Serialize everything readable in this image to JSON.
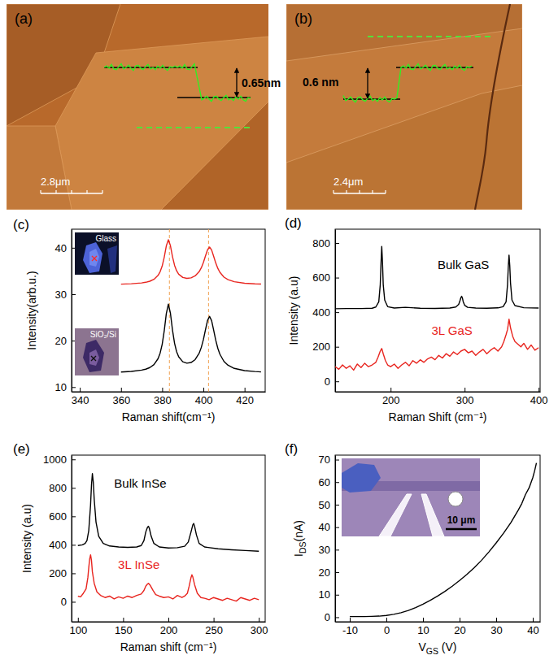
{
  "images": [
    {
      "panel_label": "(a)",
      "step_height": "0.65nm",
      "scale_bar": "2.8μm"
    },
    {
      "panel_label": "(b)",
      "step_height": "0.6 nm",
      "scale_bar": "2.4μm"
    }
  ],
  "chart_data": [
    {
      "type": "line",
      "panel_label": "(c)",
      "x_label": "Raman shift(cm⁻¹)",
      "y_label": "Intensity(arb.u.)",
      "xlim": [
        336,
        430
      ],
      "xticks": [
        340,
        360,
        380,
        400,
        420
      ],
      "ylim": [
        9,
        44
      ],
      "yticks": [
        10,
        20,
        30,
        40
      ],
      "reference_lines": [
        383.5,
        402.5
      ],
      "x": [
        360,
        365,
        370,
        372,
        374,
        376,
        378,
        379,
        380,
        381,
        382,
        383,
        384,
        385,
        386,
        387,
        388,
        390,
        392,
        394,
        396,
        398,
        399,
        400,
        401,
        402,
        403,
        404,
        405,
        406,
        407,
        408,
        410,
        412,
        415,
        420,
        425,
        428
      ],
      "series": [
        {
          "name": "Glass",
          "color": "#e8251f",
          "values": [
            32.16,
            32.25,
            32.43,
            32.57,
            32.8,
            33.21,
            34.05,
            34.84,
            36.07,
            37.99,
            40.41,
            41.74,
            40.45,
            38.08,
            36.22,
            35.04,
            34.31,
            33.61,
            33.42,
            33.52,
            33.94,
            34.89,
            35.7,
            36.81,
            38.21,
            39.55,
            40.15,
            39.52,
            38.15,
            36.72,
            35.57,
            34.72,
            33.68,
            33.12,
            32.69,
            32.37,
            32.23,
            32.18
          ]
        },
        {
          "name": "SiO₂/Si",
          "color": "#000000",
          "values": [
            13.25,
            13.37,
            13.65,
            13.86,
            14.21,
            14.84,
            16.13,
            17.32,
            19.22,
            22.15,
            25.82,
            27.86,
            25.89,
            22.29,
            19.44,
            17.62,
            16.52,
            15.45,
            15.14,
            15.29,
            15.92,
            17.34,
            18.56,
            20.22,
            22.32,
            24.34,
            25.22,
            24.29,
            22.24,
            20.08,
            18.36,
            17.09,
            15.52,
            14.69,
            14.03,
            13.56,
            13.35,
            13.27
          ]
        }
      ]
    },
    {
      "type": "line",
      "panel_label": "(d)",
      "x_label": "Raman Shift (cm⁻¹)",
      "y_label": "Intensity (a.u)",
      "xlim": [
        125,
        402
      ],
      "xticks": [
        200,
        300,
        400
      ],
      "ylim": [
        -60,
        880
      ],
      "yticks": [
        0,
        200,
        400,
        600,
        800
      ],
      "series": [
        {
          "name": "Bulk GaS",
          "color": "#000000",
          "x": [
            125,
            140,
            160,
            175,
            180,
            184,
            186,
            187,
            188,
            189,
            190,
            192,
            196,
            205,
            220,
            240,
            260,
            280,
            288,
            292,
            294,
            295,
            296,
            297,
            298,
            300,
            304,
            315,
            330,
            345,
            352,
            356,
            358,
            359,
            360,
            361,
            362,
            364,
            368,
            380,
            400
          ],
          "values": [
            420,
            421,
            421,
            423,
            430,
            460,
            560,
            680,
            780,
            690,
            560,
            470,
            432,
            424,
            428,
            423,
            422,
            424,
            430,
            445,
            470,
            485,
            492,
            482,
            462,
            440,
            428,
            424,
            423,
            425,
            432,
            460,
            560,
            660,
            730,
            670,
            570,
            470,
            438,
            426,
            424
          ]
        },
        {
          "name": "3L GaS",
          "color": "#e8251f",
          "x": [
            125,
            130,
            135,
            140,
            145,
            150,
            155,
            160,
            165,
            170,
            175,
            180,
            183,
            186,
            188,
            190,
            193,
            196,
            200,
            205,
            210,
            215,
            220,
            225,
            230,
            235,
            240,
            245,
            250,
            255,
            260,
            265,
            270,
            275,
            280,
            285,
            290,
            295,
            300,
            305,
            310,
            315,
            320,
            325,
            330,
            335,
            340,
            345,
            350,
            353,
            356,
            358,
            360,
            362,
            365,
            368,
            372,
            376,
            380,
            385,
            390,
            395,
            400
          ],
          "values": [
            85,
            70,
            95,
            75,
            90,
            65,
            100,
            80,
            105,
            85,
            95,
            110,
            140,
            175,
            190,
            160,
            120,
            95,
            85,
            100,
            75,
            95,
            110,
            90,
            120,
            105,
            125,
            110,
            130,
            140,
            125,
            150,
            135,
            160,
            145,
            170,
            155,
            175,
            185,
            165,
            175,
            150,
            170,
            185,
            160,
            180,
            195,
            175,
            200,
            230,
            270,
            300,
            360,
            310,
            260,
            230,
            215,
            200,
            220,
            185,
            210,
            180,
            195
          ]
        }
      ]
    },
    {
      "type": "line",
      "panel_label": "(e)",
      "x_label": "Raman shift (cm⁻¹)",
      "y_label": "Intensity (a.u)",
      "xlim": [
        93,
        307
      ],
      "xticks": [
        100,
        150,
        200,
        250,
        300
      ],
      "ylim": [
        -140,
        1030
      ],
      "yticks": [
        0,
        200,
        400,
        600,
        800,
        1000
      ],
      "series": [
        {
          "name": "Bulk InSe",
          "color": "#000000",
          "x": [
            100,
            105,
            108,
            110,
            112,
            114,
            115,
            116,
            117,
            118,
            120,
            123,
            128,
            135,
            145,
            155,
            165,
            170,
            173,
            175,
            177,
            178,
            179,
            181,
            184,
            190,
            200,
            210,
            218,
            222,
            225,
            227,
            228,
            229,
            231,
            234,
            240,
            255,
            270,
            285,
            300
          ],
          "values": [
            395,
            400,
            410,
            430,
            500,
            680,
            820,
            900,
            840,
            720,
            560,
            460,
            410,
            392,
            385,
            382,
            385,
            395,
            430,
            490,
            525,
            530,
            515,
            460,
            410,
            385,
            378,
            380,
            390,
            420,
            490,
            540,
            550,
            530,
            470,
            410,
            385,
            372,
            365,
            360,
            355
          ]
        },
        {
          "name": "3L InSe",
          "color": "#e8251f",
          "x": [
            100,
            103,
            106,
            109,
            111,
            112,
            113,
            114,
            115,
            116,
            118,
            121,
            125,
            130,
            135,
            140,
            145,
            150,
            155,
            160,
            165,
            170,
            173,
            175,
            177,
            178,
            180,
            183,
            186,
            190,
            195,
            200,
            205,
            210,
            215,
            218,
            221,
            223,
            225,
            226,
            227,
            229,
            232,
            236,
            240,
            245,
            250,
            255,
            260,
            265,
            270,
            275,
            280,
            285,
            290,
            295,
            300
          ],
          "values": [
            40,
            35,
            60,
            90,
            170,
            240,
            300,
            330,
            290,
            210,
            130,
            70,
            45,
            30,
            40,
            20,
            35,
            25,
            40,
            30,
            45,
            55,
            80,
            110,
            125,
            130,
            115,
            80,
            50,
            40,
            30,
            35,
            20,
            45,
            30,
            40,
            60,
            110,
            170,
            190,
            175,
            120,
            60,
            30,
            25,
            15,
            30,
            20,
            10,
            25,
            15,
            5,
            30,
            20,
            10,
            25,
            15
          ]
        }
      ]
    },
    {
      "type": "line",
      "panel_label": "(f)",
      "x_label": "VGS (V)",
      "y_label": "IDS(nA)",
      "xlim": [
        -14,
        42
      ],
      "xticks": [
        -10,
        0,
        10,
        20,
        30,
        40
      ],
      "ylim": [
        -2,
        72
      ],
      "yticks": [
        0,
        10,
        20,
        30,
        40,
        50,
        60,
        70
      ],
      "inset_scale_bar": "10 μm",
      "x": [
        -10,
        -8,
        -6,
        -4,
        -2,
        0,
        2,
        4,
        6,
        8,
        10,
        12,
        14,
        16,
        18,
        20,
        22,
        24,
        26,
        28,
        30,
        32,
        34,
        36,
        37,
        38,
        39,
        40,
        40.5,
        41
      ],
      "series": [
        {
          "color": "#000000",
          "values": [
            0.3,
            0.3,
            0.3,
            0.4,
            0.5,
            0.8,
            1.3,
            2.0,
            3.0,
            4.3,
            5.8,
            7.5,
            9.4,
            11.5,
            13.8,
            16.3,
            19.0,
            22.0,
            25.3,
            29.0,
            33.0,
            37.3,
            42.0,
            47.5,
            50.5,
            54.5,
            57.5,
            62.0,
            65.0,
            68.5
          ]
        }
      ]
    }
  ]
}
